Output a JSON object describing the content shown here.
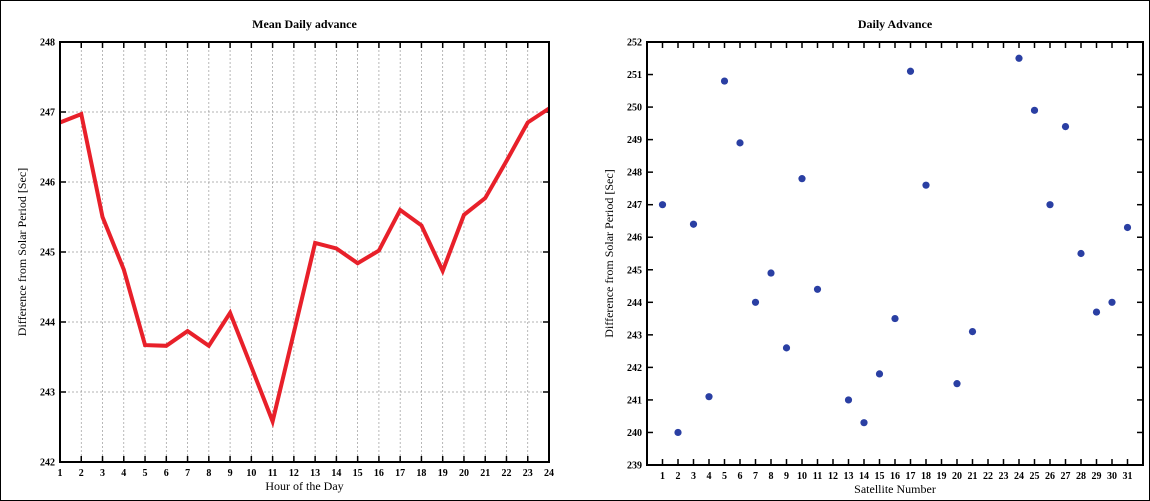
{
  "chart_data": [
    {
      "type": "line",
      "title": "Mean Daily advance",
      "xlabel": "Hour of the Day",
      "ylabel": "Difference from Solar Period [Sec]",
      "xlim": [
        1,
        24
      ],
      "ylim": [
        242,
        248
      ],
      "grid": true,
      "x_ticks": [
        "1",
        "2",
        "3",
        "4",
        "5",
        "6",
        "7",
        "8",
        "9",
        "10",
        "11",
        "12",
        "13",
        "14",
        "15",
        "16",
        "17",
        "18",
        "19",
        "20",
        "21",
        "22",
        "23",
        "24"
      ],
      "y_ticks": [
        "242",
        "243",
        "244",
        "245",
        "246",
        "247",
        "248"
      ],
      "series": [
        {
          "color": "#e8202a",
          "x": [
            1,
            2,
            3,
            4,
            5,
            6,
            7,
            8,
            9,
            10,
            11,
            12,
            13,
            14,
            15,
            16,
            17,
            18,
            19,
            20,
            21,
            22,
            23,
            24
          ],
          "y": [
            246.85,
            246.97,
            245.5,
            244.75,
            243.67,
            243.66,
            243.87,
            243.66,
            244.13,
            243.36,
            242.58,
            243.85,
            245.13,
            245.05,
            244.84,
            245.02,
            245.6,
            245.38,
            244.73,
            245.53,
            245.77,
            246.3,
            246.85,
            247.05
          ]
        }
      ]
    },
    {
      "type": "scatter",
      "title": "Daily Advance",
      "xlabel": "Satellite Number",
      "ylabel": "Difference from Solar Period [Sec]",
      "xlim": [
        0,
        32
      ],
      "ylim": [
        239,
        252
      ],
      "grid": false,
      "x_ticks": [
        "1",
        "2",
        "3",
        "4",
        "5",
        "6",
        "7",
        "8",
        "9",
        "10",
        "11",
        "12",
        "13",
        "14",
        "15",
        "16",
        "17",
        "18",
        "19",
        "20",
        "21",
        "22",
        "23",
        "24",
        "25",
        "26",
        "27",
        "28",
        "29",
        "30",
        "31"
      ],
      "y_ticks": [
        "239",
        "240",
        "241",
        "242",
        "243",
        "244",
        "245",
        "246",
        "247",
        "248",
        "249",
        "250",
        "251",
        "252"
      ],
      "series": [
        {
          "color": "#2a3fa3",
          "x": [
            1,
            2,
            3,
            4,
            5,
            6,
            7,
            8,
            9,
            10,
            11,
            13,
            14,
            15,
            16,
            17,
            18,
            20,
            21,
            24,
            25,
            26,
            27,
            28,
            29,
            30,
            31
          ],
          "y": [
            247.0,
            240.0,
            246.4,
            241.1,
            250.8,
            248.9,
            244.0,
            244.9,
            242.6,
            247.8,
            244.4,
            241.0,
            240.3,
            241.8,
            243.5,
            251.1,
            247.6,
            241.5,
            243.1,
            251.5,
            249.9,
            247.0,
            249.4,
            245.5,
            243.7,
            244.0,
            246.3
          ]
        }
      ]
    }
  ]
}
